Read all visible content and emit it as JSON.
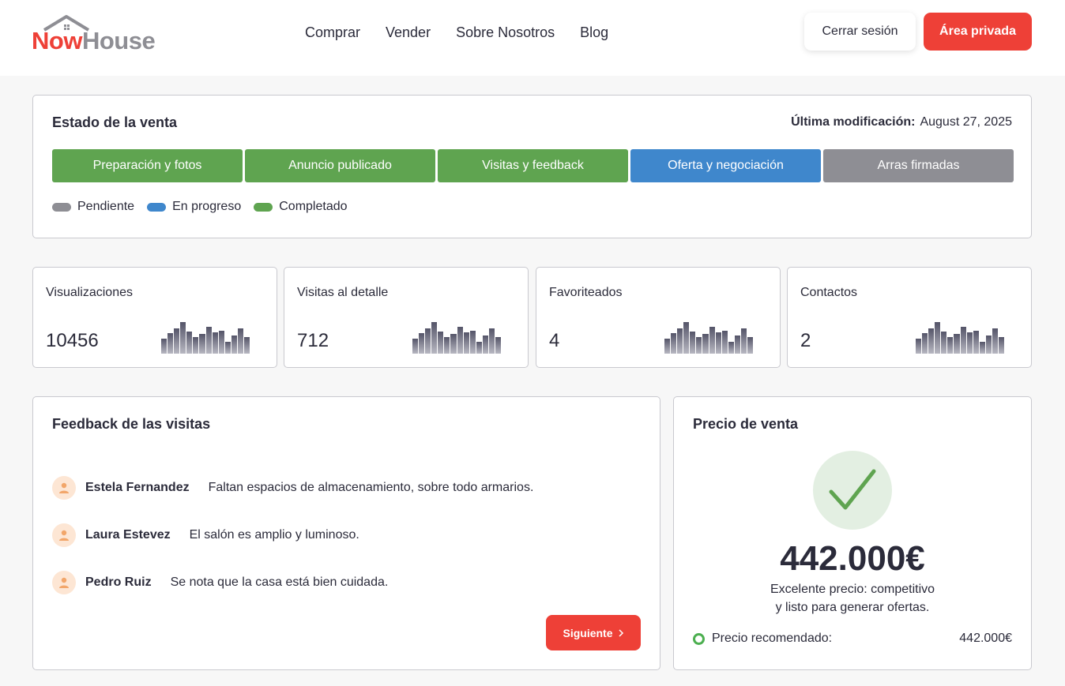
{
  "brand": {
    "part1": "Now",
    "part2": "House"
  },
  "nav": [
    "Comprar",
    "Vender",
    "Sobre Nosotros",
    "Blog"
  ],
  "header_buttons": {
    "logout": "Cerrar sesión",
    "private": "Área privada"
  },
  "status": {
    "title": "Estado de la venta",
    "last_modified_label": "Última modificación:",
    "last_modified_value": "August 27, 2025",
    "steps": [
      {
        "label": "Preparación y fotos",
        "state": "completado",
        "color": "#5fa450"
      },
      {
        "label": "Anuncio publicado",
        "state": "completado",
        "color": "#5fa450"
      },
      {
        "label": "Visitas y feedback",
        "state": "completado",
        "color": "#5fa450"
      },
      {
        "label": "Oferta y negociación",
        "state": "en-progreso",
        "color": "#3f87cc"
      },
      {
        "label": "Arras firmadas",
        "state": "pendiente",
        "color": "#8e8e94"
      }
    ],
    "legend": [
      {
        "label": "Pendiente",
        "color": "#8e8e94"
      },
      {
        "label": "En progreso",
        "color": "#3f87cc"
      },
      {
        "label": "Completado",
        "color": "#5fa450"
      }
    ]
  },
  "stats": [
    {
      "label": "Visualizaciones",
      "value": "10456",
      "spark": [
        18,
        25,
        30,
        38,
        27,
        20,
        24,
        32,
        26,
        28,
        14,
        22,
        30,
        20
      ]
    },
    {
      "label": "Visitas al detalle",
      "value": "712",
      "spark": [
        18,
        25,
        30,
        38,
        27,
        20,
        24,
        32,
        26,
        28,
        14,
        22,
        30,
        20
      ]
    },
    {
      "label": "Favoriteados",
      "value": "4",
      "spark": [
        18,
        25,
        30,
        38,
        27,
        20,
        24,
        32,
        26,
        28,
        14,
        22,
        30,
        20
      ]
    },
    {
      "label": "Contactos",
      "value": "2",
      "spark": [
        18,
        25,
        30,
        38,
        27,
        20,
        24,
        32,
        26,
        28,
        14,
        22,
        30,
        20
      ]
    }
  ],
  "feedback": {
    "title": "Feedback de las visitas",
    "items": [
      {
        "name": "Estela Fernandez",
        "text": "Faltan espacios de almacenamiento, sobre todo armarios."
      },
      {
        "name": "Laura Estevez",
        "text": "El salón es amplio y luminoso."
      },
      {
        "name": "Pedro Ruiz",
        "text": "Se nota que la casa está bien cuidada."
      }
    ],
    "next_label": "Siguiente",
    "next_icon": "chevron-right-icon"
  },
  "price": {
    "title": "Precio de venta",
    "value": "442.000€",
    "message_line1": "Excelente precio: competitivo",
    "message_line2": "y listo para generar ofertas.",
    "recommended_label": "Precio recomendado:",
    "recommended_value": "442.000€",
    "accent": "#4caf50"
  }
}
